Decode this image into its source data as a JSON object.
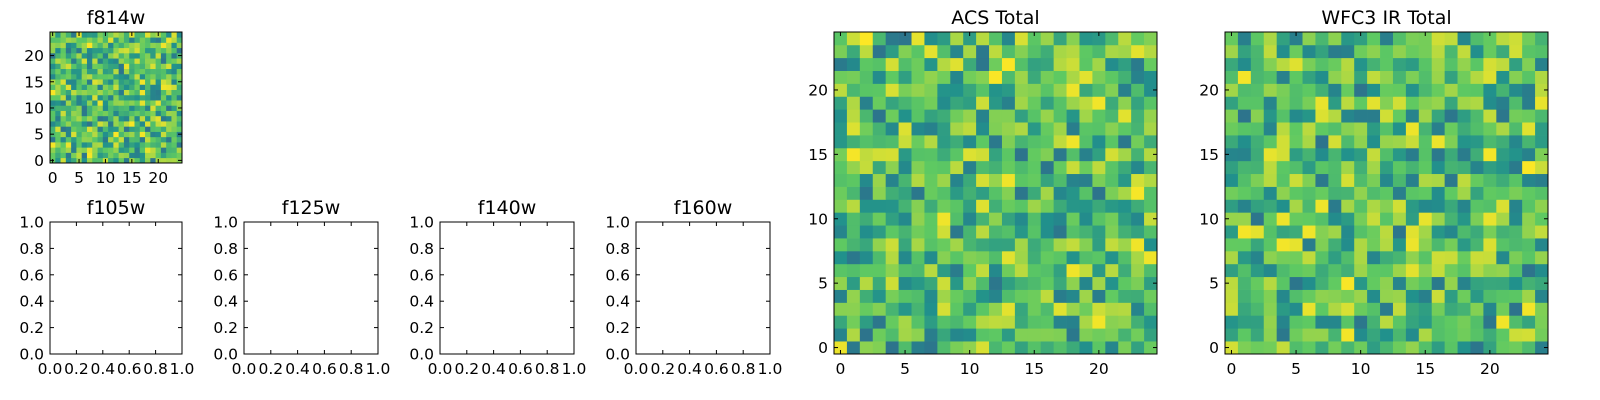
{
  "colormap": [
    "#440154",
    "#3b528b",
    "#21918c",
    "#5ec962",
    "#fde725"
  ],
  "chart_data": [
    {
      "id": "f814w",
      "type": "heatmap",
      "title": "f814w",
      "grid_size": 25,
      "xticks": [
        "0",
        "5",
        "10",
        "15",
        "20"
      ],
      "yticks": [
        "0",
        "5",
        "10",
        "15",
        "20"
      ],
      "seed": 814
    },
    {
      "id": "f105w",
      "type": "heatmap",
      "title": "f105w",
      "empty": true,
      "xticks": [
        "0.0",
        "0.2",
        "0.4",
        "0.6",
        "0.8",
        "1.0"
      ],
      "yticks": [
        "0.0",
        "0.2",
        "0.4",
        "0.6",
        "0.8",
        "1.0"
      ]
    },
    {
      "id": "f125w",
      "type": "heatmap",
      "title": "f125w",
      "empty": true,
      "xticks": [
        "0.0",
        "0.2",
        "0.4",
        "0.6",
        "0.8",
        "1.0"
      ],
      "yticks": [
        "0.0",
        "0.2",
        "0.4",
        "0.6",
        "0.8",
        "1.0"
      ]
    },
    {
      "id": "f140w",
      "type": "heatmap",
      "title": "f140w",
      "empty": true,
      "xticks": [
        "0.0",
        "0.2",
        "0.4",
        "0.6",
        "0.8",
        "1.0"
      ],
      "yticks": [
        "0.0",
        "0.2",
        "0.4",
        "0.6",
        "0.8",
        "1.0"
      ]
    },
    {
      "id": "f160w",
      "type": "heatmap",
      "title": "f160w",
      "empty": true,
      "xticks": [
        "0.0",
        "0.2",
        "0.4",
        "0.6",
        "0.8",
        "1.0"
      ],
      "yticks": [
        "0.0",
        "0.2",
        "0.4",
        "0.6",
        "0.8",
        "1.0"
      ]
    },
    {
      "id": "acs-total",
      "type": "heatmap",
      "title": "ACS Total",
      "grid_size": 25,
      "xticks": [
        "0",
        "5",
        "10",
        "15",
        "20"
      ],
      "yticks": [
        "0",
        "5",
        "10",
        "15",
        "20"
      ],
      "seed": 1234
    },
    {
      "id": "wfc3-ir-total",
      "type": "heatmap",
      "title": "WFC3 IR Total",
      "grid_size": 25,
      "xticks": [
        "0",
        "5",
        "10",
        "15",
        "20"
      ],
      "yticks": [
        "0",
        "5",
        "10",
        "15",
        "20"
      ],
      "seed": 4321
    }
  ]
}
